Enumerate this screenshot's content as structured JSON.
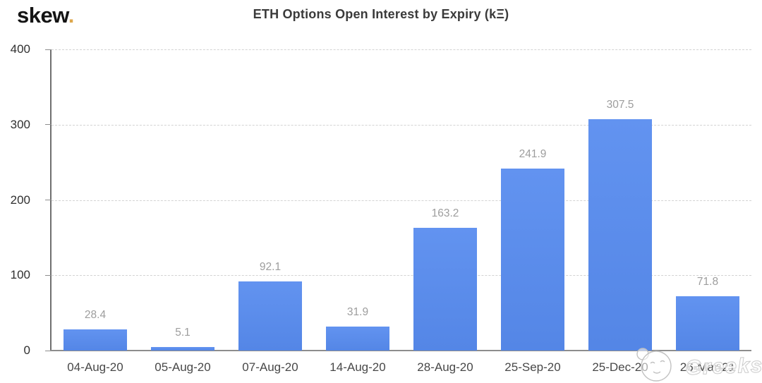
{
  "header": {
    "logo_text": "skew",
    "logo_dot": ".",
    "title": "ETH Options Open Interest by Expiry (kΞ)"
  },
  "chart_data": {
    "type": "bar",
    "title": "ETH Options Open Interest by Expiry (kΞ)",
    "categories": [
      "04-Aug-20",
      "05-Aug-20",
      "07-Aug-20",
      "14-Aug-20",
      "28-Aug-20",
      "25-Sep-20",
      "25-Dec-20",
      "26-Mar-21"
    ],
    "values": [
      28.4,
      5.1,
      92.1,
      31.9,
      163.2,
      241.9,
      307.5,
      71.8
    ],
    "value_labels": [
      "28.4",
      "5.1",
      "92.1",
      "31.9",
      "163.2",
      "241.9",
      "307.5",
      "71.8"
    ],
    "xlabel": "",
    "ylabel": "",
    "ylim": [
      0,
      400
    ],
    "y_ticks": [
      0,
      100,
      200,
      300,
      400
    ],
    "grid": true,
    "gridline_style": "dashed",
    "legend": false,
    "bar_color_top": "#6293f0",
    "bar_color_bottom": "#5486e6",
    "value_label_color": "#9d9d9d"
  },
  "watermark": {
    "text": "Greeks",
    "icon": "smiley-face-icon"
  }
}
